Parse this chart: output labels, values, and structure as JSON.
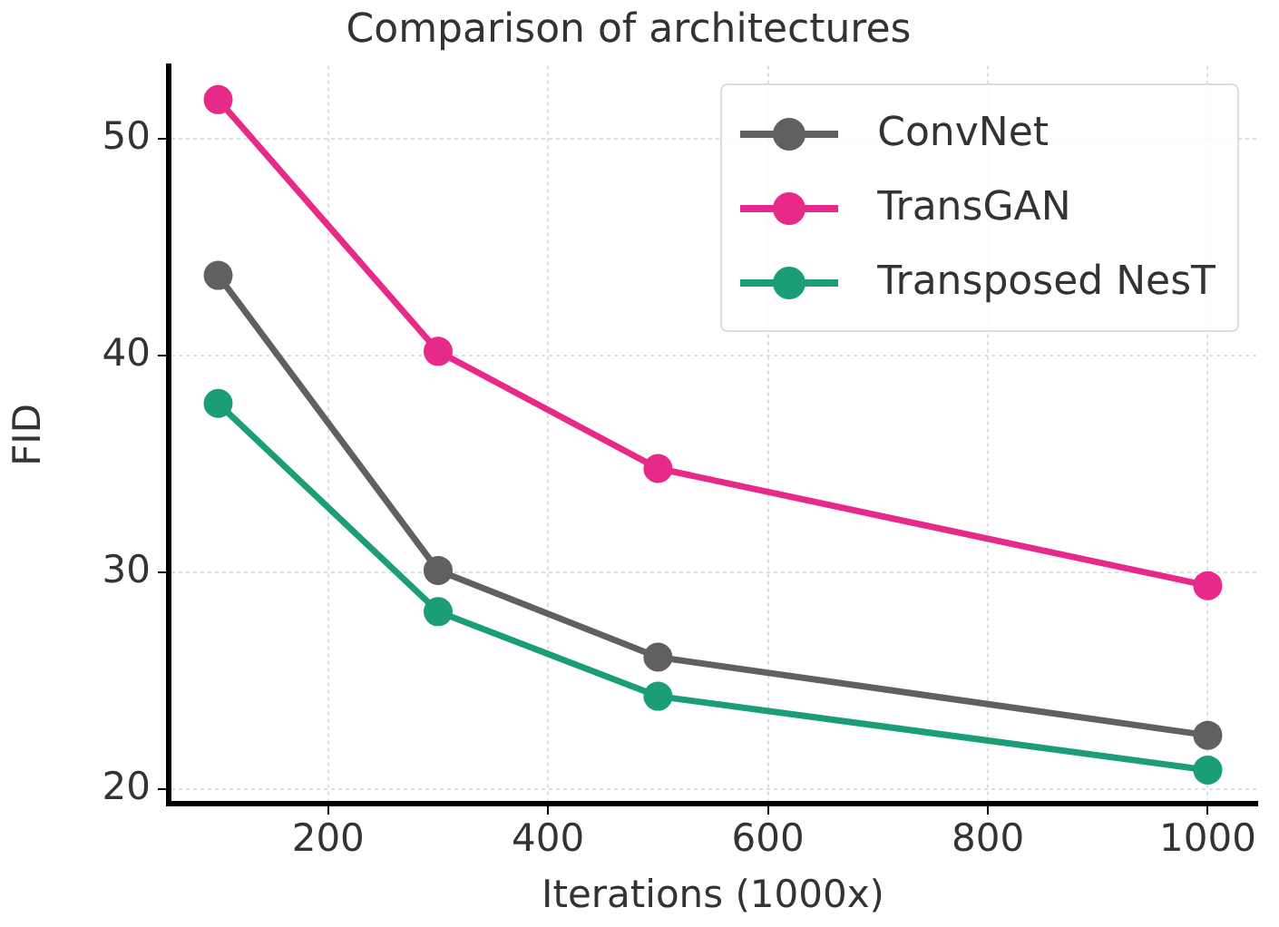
{
  "chart_data": {
    "type": "line",
    "title": "Comparison of architectures",
    "xlabel": "Iterations (1000x)",
    "ylabel": "FID",
    "x": [
      100,
      300,
      500,
      1000
    ],
    "series": [
      {
        "name": "ConvNet",
        "color": "#606060",
        "values": [
          43.7,
          30.1,
          26.1,
          22.5
        ]
      },
      {
        "name": "TransGAN",
        "color": "#e7298a",
        "values": [
          51.8,
          40.2,
          34.8,
          29.4
        ]
      },
      {
        "name": "Transposed NesT",
        "color": "#1b9e77",
        "values": [
          37.8,
          28.2,
          24.3,
          20.9
        ]
      }
    ],
    "xlim": [
      55,
      1045
    ],
    "ylim": [
      19.35,
      53.35
    ],
    "xticks": [
      200,
      400,
      600,
      800,
      1000
    ],
    "yticks": [
      20,
      30,
      40,
      50
    ],
    "grid": true,
    "legend": "top right",
    "marker": "circle",
    "line_style": "solid"
  }
}
